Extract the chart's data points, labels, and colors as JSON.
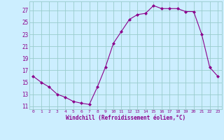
{
  "x": [
    0,
    1,
    2,
    3,
    4,
    5,
    6,
    7,
    8,
    9,
    10,
    11,
    12,
    13,
    14,
    15,
    16,
    17,
    18,
    19,
    20,
    21,
    22,
    23
  ],
  "y": [
    16.0,
    15.0,
    14.2,
    13.0,
    12.5,
    11.8,
    11.5,
    11.3,
    14.2,
    17.5,
    21.5,
    23.5,
    25.5,
    26.3,
    26.5,
    27.8,
    27.3,
    27.3,
    27.3,
    26.8,
    26.8,
    23.0,
    17.5,
    16.0
  ],
  "line_color": "#8B008B",
  "marker": "D",
  "marker_size": 2,
  "bg_color": "#cceeff",
  "grid_color": "#99cccc",
  "xlabel": "Windchill (Refroidissement éolien,°C)",
  "xlabel_color": "#8B008B",
  "tick_color": "#8B008B",
  "yticks": [
    11,
    13,
    15,
    17,
    19,
    21,
    23,
    25,
    27
  ],
  "ylim": [
    10.5,
    28.5
  ],
  "xlim": [
    -0.5,
    23.5
  ]
}
